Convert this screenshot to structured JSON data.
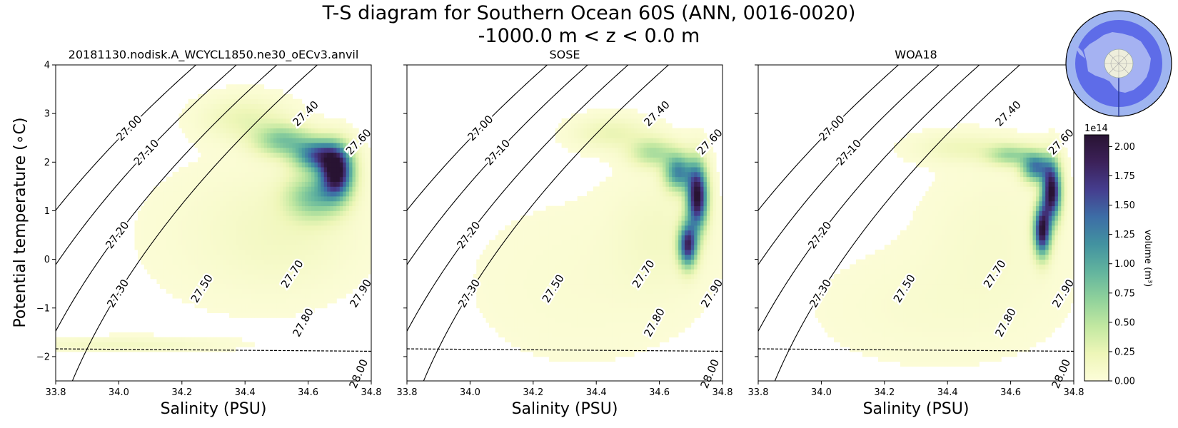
{
  "chart_data": {
    "type": "heatmap",
    "title_line1": "T-S diagram for Southern Ocean 60S (ANN, 0016-0020)",
    "title_line2": "-1000.0 m < z < 0.0 m",
    "xlabel": "Salinity (PSU)",
    "ylabel": "Potential temperature (∘C)",
    "xlim": [
      33.8,
      34.8
    ],
    "ylim": [
      -2.5,
      4
    ],
    "xticks": [
      "33.8",
      "34.0",
      "34.2",
      "34.4",
      "34.6",
      "34.8"
    ],
    "yticks": [
      "4",
      "3",
      "2",
      "1",
      "0",
      "−1",
      "−2"
    ],
    "freezing_line": {
      "s": [
        33.8,
        34.8
      ],
      "t": [
        -1.84,
        -1.89
      ]
    },
    "density_contours": {
      "levels": [
        27.0,
        27.1,
        27.2,
        27.3,
        27.4,
        27.5,
        27.6,
        27.7,
        27.8,
        27.9,
        28.0
      ],
      "labels": [
        "27.00",
        "27.10",
        "27.20",
        "27.30",
        "27.40",
        "27.50",
        "27.60",
        "27.70",
        "27.80",
        "27.90",
        "28.00"
      ]
    },
    "panels": [
      {
        "title": "20181130.nodisk.A_WCYCL1850.ne30_oECv3.anvil",
        "volume_clusters": [
          {
            "s": 34.69,
            "t": 1.8,
            "amp": 2.05,
            "ws": 0.035,
            "wt": 0.35
          },
          {
            "s": 34.63,
            "t": 2.15,
            "amp": 1.35,
            "ws": 0.05,
            "wt": 0.22
          },
          {
            "s": 34.52,
            "t": 2.45,
            "amp": 0.75,
            "ws": 0.06,
            "wt": 0.22
          },
          {
            "s": 34.62,
            "t": 1.3,
            "amp": 0.75,
            "ws": 0.06,
            "wt": 0.32
          },
          {
            "s": 34.4,
            "t": 2.9,
            "amp": 0.25,
            "ws": 0.09,
            "wt": 0.3
          },
          {
            "s": 34.55,
            "t": 0.6,
            "amp": 0.12,
            "ws": 0.15,
            "wt": 0.8
          },
          {
            "s": 34.35,
            "t": 0.5,
            "amp": 0.06,
            "ws": 0.2,
            "wt": 1.0
          },
          {
            "s": 34.0,
            "t": -1.75,
            "amp": 0.14,
            "ws": 0.2,
            "wt": 0.1
          }
        ]
      },
      {
        "title": "SOSE",
        "volume_clusters": [
          {
            "s": 34.72,
            "t": 1.3,
            "amp": 2.1,
            "ws": 0.022,
            "wt": 0.45
          },
          {
            "s": 34.69,
            "t": 0.3,
            "amp": 1.75,
            "ws": 0.02,
            "wt": 0.3
          },
          {
            "s": 34.66,
            "t": 1.8,
            "amp": 1.2,
            "ws": 0.03,
            "wt": 0.25
          },
          {
            "s": 34.58,
            "t": 2.2,
            "amp": 0.55,
            "ws": 0.05,
            "wt": 0.2
          },
          {
            "s": 34.45,
            "t": 2.6,
            "amp": 0.25,
            "ws": 0.08,
            "wt": 0.22
          },
          {
            "s": 34.6,
            "t": 0.5,
            "amp": 0.12,
            "ws": 0.1,
            "wt": 0.8
          },
          {
            "s": 34.35,
            "t": -0.5,
            "amp": 0.05,
            "ws": 0.25,
            "wt": 1.2
          }
        ]
      },
      {
        "title": "WOA18",
        "volume_clusters": [
          {
            "s": 34.73,
            "t": 1.4,
            "amp": 2.1,
            "ws": 0.02,
            "wt": 0.4
          },
          {
            "s": 34.7,
            "t": 0.6,
            "amp": 2.0,
            "ws": 0.018,
            "wt": 0.35
          },
          {
            "s": 34.68,
            "t": 1.9,
            "amp": 1.3,
            "ws": 0.03,
            "wt": 0.2
          },
          {
            "s": 34.6,
            "t": 2.15,
            "amp": 0.6,
            "ws": 0.05,
            "wt": 0.15
          },
          {
            "s": 34.45,
            "t": 2.3,
            "amp": 0.2,
            "ws": 0.1,
            "wt": 0.2
          },
          {
            "s": 34.55,
            "t": 0.5,
            "amp": 0.08,
            "ws": 0.15,
            "wt": 1.0
          },
          {
            "s": 34.35,
            "t": -1.0,
            "amp": 0.06,
            "ws": 0.25,
            "wt": 0.8
          }
        ]
      }
    ],
    "colorbar": {
      "label": "volume (m³)",
      "scale": "1e14",
      "ticks": [
        "0.00",
        "0.25",
        "0.50",
        "0.75",
        "1.00",
        "1.25",
        "1.50",
        "1.75",
        "2.00"
      ],
      "range": [
        0,
        2.1
      ],
      "colors": [
        "#fdfdd9",
        "#eef6b8",
        "#c2e8a1",
        "#8fd19b",
        "#62b49e",
        "#4292a0",
        "#3d6da6",
        "#453d8e",
        "#3c2159",
        "#281332"
      ]
    },
    "inset_map": {
      "ocean": "#5e6ce8",
      "land": "#a5b2f2",
      "ring": "#9fb5f0"
    }
  }
}
